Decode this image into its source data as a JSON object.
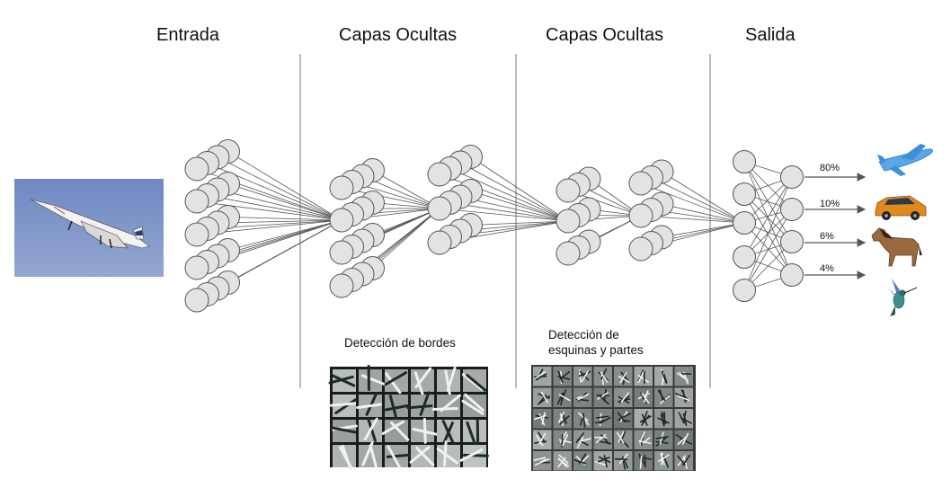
{
  "headings": {
    "input": "Entrada",
    "hidden_1": "Capas Ocultas",
    "hidden_2": "Capas Ocultas",
    "output": "Salida"
  },
  "feature_labels": {
    "edges": "Detección de bordes",
    "corners_line1": "Detección de",
    "corners_line2": "esquinas y partes"
  },
  "outputs": [
    {
      "percent": "80%",
      "value": 0.8,
      "icon": "airplane-icon"
    },
    {
      "percent": "10%",
      "value": 0.1,
      "icon": "car-icon"
    },
    {
      "percent": "6%",
      "value": 0.06,
      "icon": "horse-icon"
    },
    {
      "percent": "4%",
      "value": 0.04,
      "icon": "hummingbird-icon"
    }
  ],
  "input_image": "concorde-airplane-photo",
  "colors": {
    "node_fill": "#e3e3e3",
    "node_stroke": "#555555",
    "edge": "#555555",
    "divider": "#777777",
    "photo_sky": "#7f97c8"
  }
}
